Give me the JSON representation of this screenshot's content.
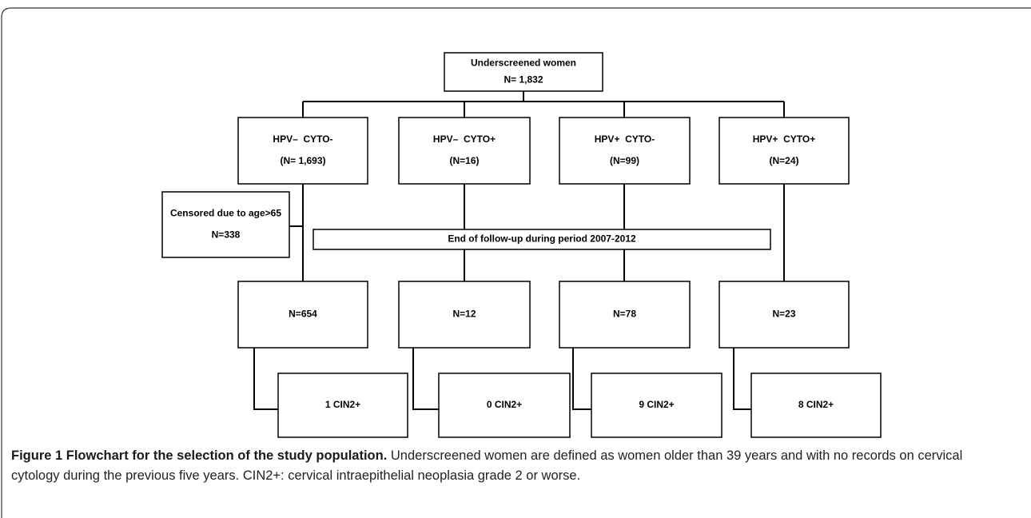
{
  "nodes": [
    {
      "lines": [
        "Underscreened women",
        "N= 1,832"
      ]
    },
    {
      "lines": [
        "HPV–  CYTO-",
        "(N= 1,693)"
      ]
    },
    {
      "lines": [
        "HPV–  CYTO+",
        "(N=16)"
      ]
    },
    {
      "lines": [
        "HPV+  CYTO-",
        "(N=99)"
      ]
    },
    {
      "lines": [
        "HPV+  CYTO+",
        "(N=24)"
      ]
    },
    {
      "lines": [
        "Censored due to age>65",
        "N=338"
      ]
    },
    {
      "lines": [
        "End of follow-up during period 2007-2012"
      ]
    },
    {
      "lines": [
        "N=654"
      ]
    },
    {
      "lines": [
        "N=12"
      ]
    },
    {
      "lines": [
        "N=78"
      ]
    },
    {
      "lines": [
        "N=23"
      ]
    },
    {
      "lines": [
        "1 CIN2+"
      ]
    },
    {
      "lines": [
        "0 CIN2+"
      ]
    },
    {
      "lines": [
        "9 CIN2+"
      ]
    },
    {
      "lines": [
        "8 CIN2+"
      ]
    }
  ],
  "caption": {
    "label": "Figure 1 Flowchart for the selection of the study population.",
    "text": "Underscreened women are defined as women older than 39 years and with no records on cervical cytology during the previous five years. CIN2+: cervical intraepithelial neoplasia grade 2 or worse."
  }
}
